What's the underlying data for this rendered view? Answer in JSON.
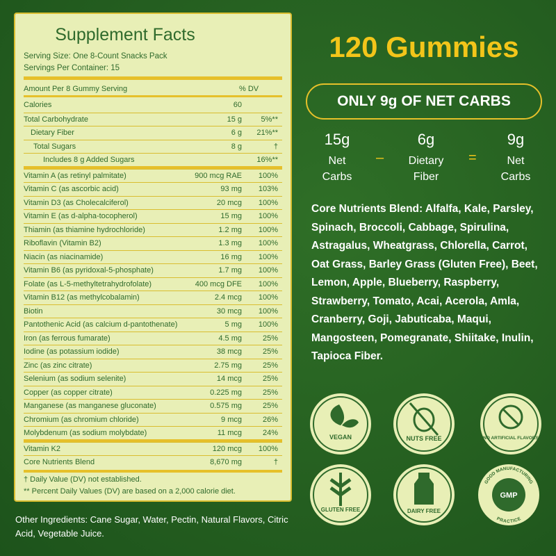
{
  "supplement_facts": {
    "title": "Supplement Facts",
    "serving_size": "Serving Size: One 8-Count Snacks Pack",
    "servings_per_container": "Servings Per Container: 15",
    "header": {
      "amount": "Amount Per 8 Gummy Serving",
      "dv": "% DV"
    },
    "rows": [
      {
        "name": "Calories",
        "amount": "60"
      },
      {
        "name": "Total Carbohydrate",
        "amount": "15 g",
        "dv": "5%**"
      },
      {
        "name": "Dietary Fiber",
        "amount": "6 g",
        "dv": "21%**"
      },
      {
        "name": "Total Sugars",
        "amount": "8 g",
        "dv": "†"
      },
      {
        "name": "Includes 8 g Added Sugars",
        "dv": "16%**"
      },
      {
        "name": "Vitamin A (as retinyl palmitate)",
        "amount": "900 mcg RAE",
        "dv": "100%"
      },
      {
        "name": "Vitamin C (as ascorbic acid)",
        "amount": "93 mg",
        "dv": "103%"
      },
      {
        "name": "Vitamin D3 (as Cholecalciferol)",
        "amount": "20 mcg",
        "dv": "100%"
      },
      {
        "name": "Vitamin E (as d-alpha-tocopherol)",
        "amount": "15 mg",
        "dv": "100%"
      },
      {
        "name": "Thiamin (as thiamine hydrochloride)",
        "amount": "1.2 mg",
        "dv": "100%"
      },
      {
        "name": "Riboflavin (Vitamin B2)",
        "amount": "1.3 mg",
        "dv": "100%"
      },
      {
        "name": "Niacin (as niacinamide)",
        "amount": "16 mg",
        "dv": "100%"
      },
      {
        "name": "Vitamin B6 (as pyridoxal-5-phosphate)",
        "amount": "1.7 mg",
        "dv": "100%"
      },
      {
        "name": "Folate (as L-5-methyltetrahydrofolate)",
        "amount": "400 mcg DFE",
        "dv": "100%"
      },
      {
        "name": "Vitamin B12 (as methylcobalamin)",
        "amount": "2.4 mcg",
        "dv": "100%"
      },
      {
        "name": "Biotin",
        "amount": "30 mcg",
        "dv": "100%"
      },
      {
        "name": "Pantothenic Acid (as calcium d-pantothenate)",
        "amount": "5 mg",
        "dv": "100%"
      },
      {
        "name": "Iron (as ferrous fumarate)",
        "amount": "4.5 mg",
        "dv": "25%"
      },
      {
        "name": "Iodine (as potassium iodide)",
        "amount": "38 mcg",
        "dv": "25%"
      },
      {
        "name": "Zinc (as zinc citrate)",
        "amount": "2.75 mg",
        "dv": "25%"
      },
      {
        "name": "Selenium (as sodium selenite)",
        "amount": "14 mcg",
        "dv": "25%"
      },
      {
        "name": "Copper (as copper citrate)",
        "amount": "0.225 mg",
        "dv": "25%"
      },
      {
        "name": "Manganese (as manganese gluconate)",
        "amount": "0.575 mg",
        "dv": "25%"
      },
      {
        "name": "Chromium (as chromium chloride)",
        "amount": "9 mcg",
        "dv": "26%"
      },
      {
        "name": "Molybdenum (as sodium molybdate)",
        "amount": "11 mcg",
        "dv": "24%"
      },
      {
        "name": "Vitamin K2",
        "amount": "120 mcg",
        "dv": "100%"
      },
      {
        "name": "Core Nutrients Blend",
        "amount": "8,670 mg",
        "dv": "†"
      }
    ],
    "footnotes": [
      "† Daily Value (DV) not established.",
      "** Percent Daily Values (DV) are based on a 2,000 calorie diet."
    ]
  },
  "other_ingredients": "Other Ingredients: Cane Sugar, Water, Pectin, Natural Flavors, Citric Acid, Vegetable Juice.",
  "headline": "120 Gummies",
  "net_carbs": {
    "banner": "ONLY 9g OF NET CARBS",
    "terms": [
      {
        "amount": "15g",
        "label": "Net Carbs"
      },
      {
        "amount": "6g",
        "label": "Dietary Fiber"
      },
      {
        "amount": "9g",
        "label": "Net Carbs"
      }
    ],
    "operators": [
      "–",
      "="
    ]
  },
  "core_nutrients": "Core Nutrients Blend: Alfalfa, Kale, Parsley, Spinach, Broccoli, Cabbage, Spirulina, Astragalus, Wheatgrass, Chlorella, Carrot, Oat Grass, Barley Grass (Gluten Free), Beet, Lemon, Apple, Blueberry, Raspberry, Strawberry, Tomato, Acai, Acerola, Amla, Cranberry, Goji, Jabuticaba, Maqui, Mangosteen, Pomegranate, Shiitake, Inulin, Tapioca Fiber.",
  "badges": [
    {
      "label": "VEGAN"
    },
    {
      "label": "NUTS FREE"
    },
    {
      "label": "NO ARTIFICIAL FLAVORS"
    },
    {
      "label": "GLUTEN FREE"
    },
    {
      "label": "DAIRY FREE"
    },
    {
      "label": "GMP",
      "ring_top": "GOOD MANUFACTURING",
      "ring_bottom": "PRACTICE"
    }
  ]
}
